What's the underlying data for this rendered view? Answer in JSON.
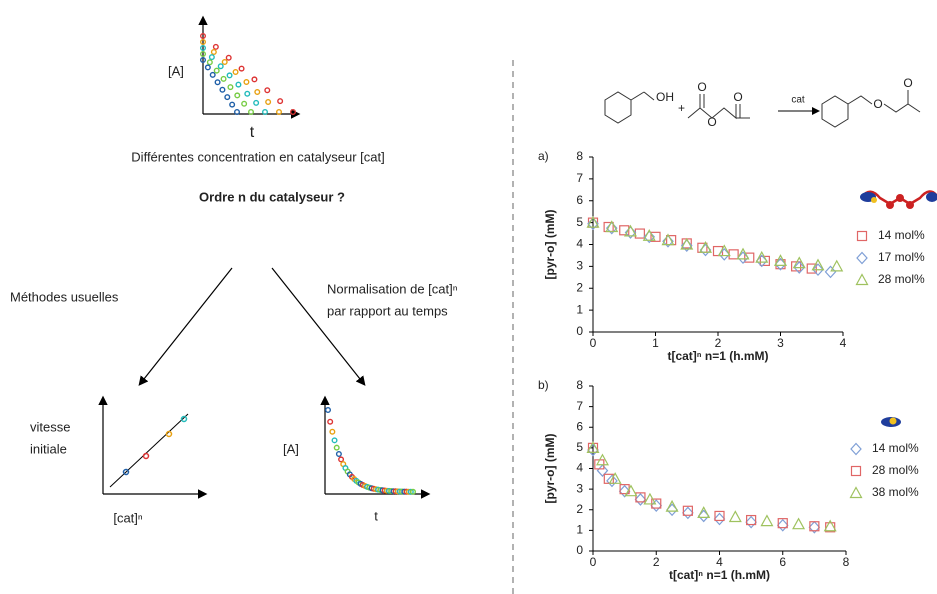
{
  "schematic": {
    "decay_axis_label_y": "[A]",
    "decay_axis_label_x": "t",
    "caption": "Différentes concentration en catalyseur [cat]",
    "question": "Ordre n du catalyseur ?",
    "left_branch": "Méthodes usuelles",
    "right_branch": [
      "Normalisation de [cat]ⁿ",
      "par rapport au temps"
    ],
    "rate_axis_label_y": [
      "vitesse",
      "initiale"
    ],
    "rate_axis_label_x": "[cat]ⁿ",
    "norm_axis_label_y": "[A]",
    "norm_axis_label_x": "t"
  },
  "scheme": {
    "hydroxyl": "OH",
    "plus": "+",
    "arrow_label": "cat",
    "oxygens": [
      "O",
      "O",
      "O",
      "O",
      "O"
    ]
  },
  "chart_data": [
    {
      "type": "scatter",
      "panel_label": "a)",
      "x_label": "t[cat]ⁿ n=1 (h.mM)",
      "y_label": "[pyr-o] (mM)",
      "xlim": [
        0,
        4
      ],
      "xticks": [
        0,
        1,
        2,
        3,
        4
      ],
      "ylim": [
        0,
        8
      ],
      "yticks": [
        0,
        1,
        2,
        3,
        4,
        5,
        6,
        7,
        8
      ],
      "series": [
        {
          "name": "14 mol%",
          "color": "#e06666",
          "marker": "square",
          "x": [
            0,
            0.25,
            0.5,
            0.75,
            1.0,
            1.25,
            1.5,
            1.75,
            2.0,
            2.25,
            2.5,
            2.75,
            3.0,
            3.25,
            3.5
          ],
          "values": [
            5.0,
            4.8,
            4.65,
            4.5,
            4.35,
            4.2,
            4.05,
            3.85,
            3.7,
            3.55,
            3.4,
            3.25,
            3.1,
            3.0,
            2.9
          ]
        },
        {
          "name": "17 mol%",
          "color": "#7f9fd6",
          "marker": "diamond",
          "x": [
            0,
            0.3,
            0.6,
            0.9,
            1.2,
            1.5,
            1.8,
            2.1,
            2.4,
            2.7,
            3.0,
            3.3,
            3.6,
            3.8
          ],
          "values": [
            4.95,
            4.75,
            4.55,
            4.35,
            4.15,
            3.95,
            3.75,
            3.55,
            3.4,
            3.25,
            3.1,
            2.95,
            2.85,
            2.75
          ]
        },
        {
          "name": "28 mol%",
          "color": "#9fc25f",
          "marker": "triangle",
          "x": [
            0,
            0.3,
            0.6,
            0.9,
            1.2,
            1.5,
            1.8,
            2.1,
            2.4,
            2.7,
            3.0,
            3.3,
            3.6,
            3.9
          ],
          "values": [
            5.0,
            4.8,
            4.6,
            4.4,
            4.2,
            4.0,
            3.85,
            3.7,
            3.55,
            3.4,
            3.25,
            3.15,
            3.05,
            3.0
          ]
        }
      ]
    },
    {
      "type": "scatter",
      "panel_label": "b)",
      "x_label": "t[cat]ⁿ n=1 (h.mM)",
      "y_label": "[pyr-o] (mM)",
      "xlim": [
        0,
        8
      ],
      "xticks": [
        0,
        2,
        4,
        6,
        8
      ],
      "ylim": [
        0,
        8
      ],
      "yticks": [
        0,
        1,
        2,
        3,
        4,
        5,
        6,
        7,
        8
      ],
      "series": [
        {
          "name": "14 mol%",
          "color": "#7f9fd6",
          "marker": "diamond",
          "x": [
            0,
            0.3,
            0.6,
            1,
            1.5,
            2,
            2.5,
            3,
            3.5,
            4,
            5,
            6,
            7
          ],
          "values": [
            4.9,
            3.9,
            3.4,
            2.9,
            2.5,
            2.2,
            2.0,
            1.85,
            1.7,
            1.55,
            1.4,
            1.25,
            1.15
          ]
        },
        {
          "name": "28 mol%",
          "color": "#e06666",
          "marker": "square",
          "x": [
            0,
            0.2,
            0.5,
            1,
            1.5,
            2,
            3,
            4,
            5,
            6,
            7,
            7.5
          ],
          "values": [
            5.0,
            4.2,
            3.5,
            3.0,
            2.6,
            2.3,
            1.95,
            1.7,
            1.5,
            1.35,
            1.2,
            1.15
          ]
        },
        {
          "name": "38 mol%",
          "color": "#9fc25f",
          "marker": "triangle",
          "x": [
            0,
            0.3,
            0.7,
            1.2,
            1.8,
            2.5,
            3.5,
            4.5,
            5.5,
            6.5,
            7.5
          ],
          "values": [
            5.0,
            4.4,
            3.5,
            2.9,
            2.5,
            2.15,
            1.85,
            1.65,
            1.45,
            1.3,
            1.2
          ]
        }
      ]
    }
  ]
}
